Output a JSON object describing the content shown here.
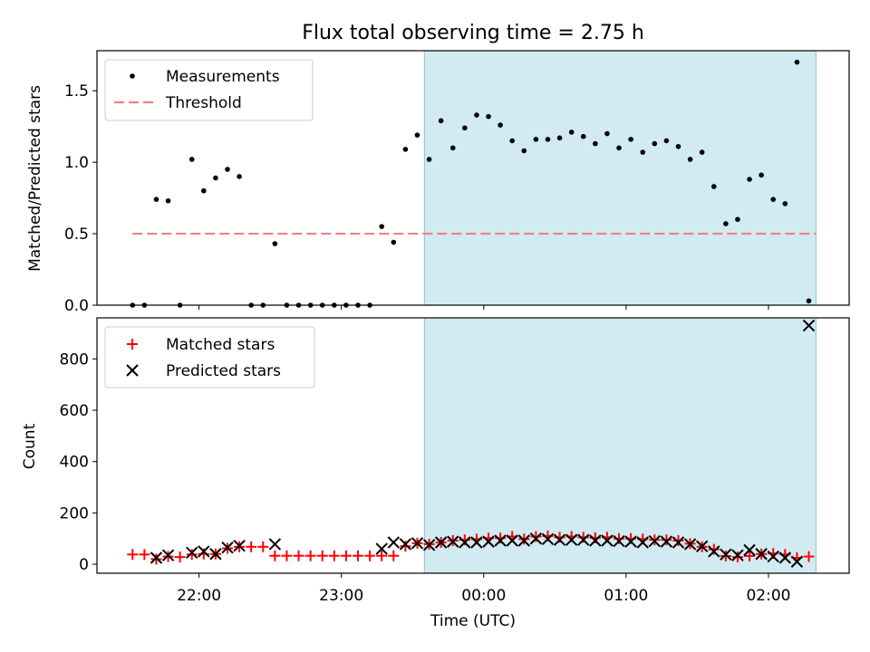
{
  "title": "Flux total observing time = 2.75 h",
  "chart_data": [
    {
      "panel": "top",
      "type": "scatter",
      "ylabel": "Matched/Predicted stars",
      "ylim": [
        0,
        1.78
      ],
      "yticks": [
        0.0,
        0.5,
        1.0,
        1.5
      ],
      "ytick_labels": [
        "0.0",
        "0.5",
        "1.0",
        "1.5"
      ],
      "legend": {
        "placement": "top-left",
        "entries": [
          "Measurements",
          "Threshold"
        ]
      },
      "threshold": {
        "value": 0.5,
        "x_start": "21:32",
        "x_end": "02:20",
        "color": "#f08080"
      },
      "series": [
        {
          "name": "Measurements",
          "color": "#000000",
          "x": [
            "21:32",
            "21:37",
            "21:42",
            "21:47",
            "21:52",
            "21:57",
            "22:02",
            "22:07",
            "22:12",
            "22:17",
            "22:22",
            "22:27",
            "22:32",
            "22:37",
            "22:42",
            "22:47",
            "22:52",
            "22:57",
            "23:02",
            "23:07",
            "23:12",
            "23:17",
            "23:22",
            "23:27",
            "23:32",
            "23:37",
            "23:42",
            "23:47",
            "23:52",
            "23:57",
            "00:02",
            "00:07",
            "00:12",
            "00:17",
            "00:22",
            "00:27",
            "00:32",
            "00:37",
            "00:42",
            "00:47",
            "00:52",
            "00:57",
            "01:02",
            "01:07",
            "01:12",
            "01:17",
            "01:22",
            "01:27",
            "01:32",
            "01:37",
            "01:42",
            "01:47",
            "01:52",
            "01:57",
            "02:02",
            "02:07",
            "02:12",
            "02:17"
          ],
          "y": [
            0.0,
            0.0,
            0.74,
            0.73,
            0.0,
            1.02,
            0.8,
            0.89,
            0.95,
            0.9,
            0.0,
            0.0,
            0.43,
            0.0,
            0.0,
            0.0,
            0.0,
            0.0,
            0.0,
            0.0,
            0.0,
            0.55,
            0.44,
            1.09,
            1.19,
            1.02,
            1.29,
            1.1,
            1.24,
            1.33,
            1.32,
            1.26,
            1.15,
            1.08,
            1.16,
            1.16,
            1.17,
            1.21,
            1.18,
            1.13,
            1.2,
            1.1,
            1.16,
            1.07,
            1.13,
            1.15,
            1.11,
            1.02,
            1.07,
            0.83,
            0.57,
            0.6,
            0.88,
            0.91,
            0.74,
            0.71,
            1.7,
            0.03
          ]
        }
      ]
    },
    {
      "panel": "bottom",
      "type": "scatter",
      "xlabel": "Time (UTC)",
      "ylabel": "Count",
      "ylim": [
        -35,
        960
      ],
      "yticks": [
        0,
        200,
        400,
        600,
        800
      ],
      "ytick_labels": [
        "0",
        "200",
        "400",
        "600",
        "800"
      ],
      "xticks": [
        "22:00",
        "23:00",
        "00:00",
        "01:00",
        "02:00"
      ],
      "xlim": [
        "21:17",
        "02:34"
      ],
      "legend": {
        "placement": "top-left",
        "entries": [
          "Matched stars",
          "Predicted stars"
        ]
      },
      "shaded_region": {
        "start": "23:35",
        "end": "02:20",
        "color": "#add8e6"
      },
      "x": [
        "21:32",
        "21:37",
        "21:42",
        "21:47",
        "21:52",
        "21:57",
        "22:02",
        "22:07",
        "22:12",
        "22:17",
        "22:22",
        "22:27",
        "22:32",
        "22:37",
        "22:42",
        "22:47",
        "22:52",
        "22:57",
        "23:02",
        "23:07",
        "23:12",
        "23:17",
        "23:22",
        "23:27",
        "23:32",
        "23:37",
        "23:42",
        "23:47",
        "23:52",
        "23:57",
        "00:02",
        "00:07",
        "00:12",
        "00:17",
        "00:22",
        "00:27",
        "00:32",
        "00:37",
        "00:42",
        "00:47",
        "00:52",
        "00:57",
        "01:02",
        "01:07",
        "01:12",
        "01:17",
        "01:22",
        "01:27",
        "01:32",
        "01:37",
        "01:42",
        "01:47",
        "01:52",
        "01:57",
        "02:02",
        "02:07",
        "02:12",
        "02:17"
      ],
      "series": [
        {
          "name": "Matched stars",
          "marker": "plus",
          "color": "#ff0000",
          "y": [
            38,
            38,
            20,
            30,
            28,
            38,
            40,
            40,
            62,
            68,
            68,
            68,
            33,
            33,
            33,
            33,
            33,
            33,
            33,
            33,
            33,
            33,
            33,
            70,
            82,
            78,
            85,
            92,
            95,
            98,
            102,
            102,
            108,
            98,
            108,
            110,
            105,
            108,
            105,
            103,
            105,
            100,
            100,
            98,
            95,
            95,
            92,
            80,
            68,
            58,
            32,
            28,
            32,
            40,
            42,
            38,
            25,
            30
          ]
        },
        {
          "name": "Predicted stars",
          "marker": "x",
          "color": "#000000",
          "y": [
            null,
            null,
            25,
            35,
            null,
            45,
            50,
            40,
            65,
            72,
            null,
            null,
            78,
            null,
            null,
            null,
            null,
            null,
            null,
            null,
            null,
            60,
            85,
            78,
            82,
            75,
            85,
            88,
            85,
            85,
            88,
            92,
            92,
            92,
            100,
            98,
            95,
            95,
            95,
            92,
            92,
            90,
            88,
            85,
            90,
            88,
            85,
            78,
            70,
            50,
            38,
            35,
            55,
            40,
            30,
            25,
            10,
            930
          ]
        }
      ]
    }
  ]
}
